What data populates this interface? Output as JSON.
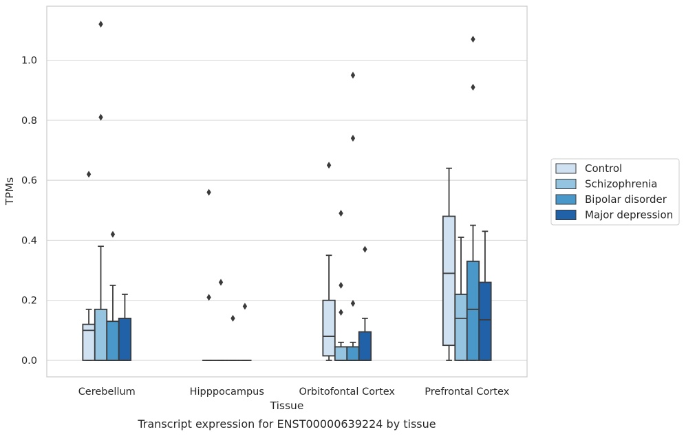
{
  "chart_data": {
    "type": "box",
    "title": "",
    "caption": "Transcript expression for ENST00000639224 by tissue",
    "xlabel": "Tissue",
    "ylabel": "TPMs",
    "ylim": [
      -0.055,
      1.18
    ],
    "yticks": [
      0.0,
      0.2,
      0.4,
      0.6,
      0.8,
      1.0
    ],
    "ytick_labels": [
      "0.0",
      "0.2",
      "0.4",
      "0.6",
      "0.8",
      "1.0"
    ],
    "grid": "horizontal",
    "legend_position": "right",
    "categories": [
      "Cerebellum",
      "Hipppocampus",
      "Orbitofontal Cortex",
      "Prefrontal Cortex"
    ],
    "series": [
      {
        "name": "Control",
        "color": "#d0e1f2",
        "boxes": [
          {
            "whislo": 0.0,
            "q1": 0.0,
            "med": 0.1,
            "q3": 0.12,
            "whishi": 0.17,
            "fliers": [
              0.62
            ]
          },
          {
            "whislo": 0.0,
            "q1": 0.0,
            "med": 0.0,
            "q3": 0.0,
            "whishi": 0.0,
            "fliers": [
              0.21,
              0.56
            ]
          },
          {
            "whislo": 0.0,
            "q1": 0.015,
            "med": 0.08,
            "q3": 0.2,
            "whishi": 0.35,
            "fliers": [
              0.65
            ]
          },
          {
            "whislo": 0.0,
            "q1": 0.05,
            "med": 0.29,
            "q3": 0.48,
            "whishi": 0.64,
            "fliers": []
          }
        ]
      },
      {
        "name": "Schizophrenia",
        "color": "#94c4df",
        "boxes": [
          {
            "whislo": 0.0,
            "q1": 0.0,
            "med": 0.0,
            "q3": 0.17,
            "whishi": 0.38,
            "fliers": [
              0.81,
              1.12
            ]
          },
          {
            "whislo": 0.0,
            "q1": 0.0,
            "med": 0.0,
            "q3": 0.0,
            "whishi": 0.0,
            "fliers": [
              0.26
            ]
          },
          {
            "whislo": 0.0,
            "q1": 0.0,
            "med": 0.0,
            "q3": 0.045,
            "whishi": 0.06,
            "fliers": [
              0.16,
              0.25,
              0.49
            ]
          },
          {
            "whislo": 0.0,
            "q1": 0.0,
            "med": 0.14,
            "q3": 0.22,
            "whishi": 0.41,
            "fliers": []
          }
        ]
      },
      {
        "name": "Bipolar disorder",
        "color": "#4a98c9",
        "boxes": [
          {
            "whislo": 0.0,
            "q1": 0.0,
            "med": 0.0,
            "q3": 0.13,
            "whishi": 0.25,
            "fliers": [
              0.42
            ]
          },
          {
            "whislo": 0.0,
            "q1": 0.0,
            "med": 0.0,
            "q3": 0.0,
            "whishi": 0.0,
            "fliers": [
              0.14
            ]
          },
          {
            "whislo": 0.0,
            "q1": 0.0,
            "med": 0.0,
            "q3": 0.045,
            "whishi": 0.06,
            "fliers": [
              0.19,
              0.74,
              0.95
            ]
          },
          {
            "whislo": 0.0,
            "q1": 0.0,
            "med": 0.17,
            "q3": 0.33,
            "whishi": 0.45,
            "fliers": [
              0.91,
              1.07
            ]
          }
        ]
      },
      {
        "name": "Major depression",
        "color": "#2161a7",
        "boxes": [
          {
            "whislo": 0.0,
            "q1": 0.0,
            "med": 0.0,
            "q3": 0.14,
            "whishi": 0.22,
            "fliers": []
          },
          {
            "whislo": 0.0,
            "q1": 0.0,
            "med": 0.0,
            "q3": 0.0,
            "whishi": 0.0,
            "fliers": [
              0.18
            ]
          },
          {
            "whislo": 0.0,
            "q1": 0.0,
            "med": 0.0,
            "q3": 0.095,
            "whishi": 0.14,
            "fliers": [
              0.37
            ]
          },
          {
            "whislo": 0.0,
            "q1": 0.0,
            "med": 0.135,
            "q3": 0.26,
            "whishi": 0.43,
            "fliers": []
          }
        ]
      }
    ]
  }
}
